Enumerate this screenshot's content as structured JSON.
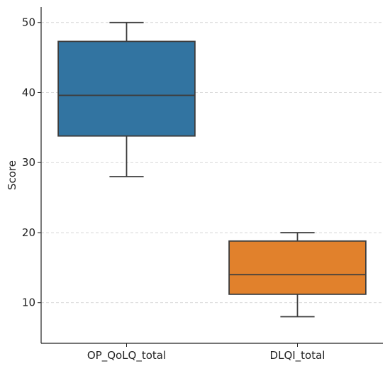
{
  "chart_data": {
    "type": "box",
    "title": "",
    "xlabel": "",
    "ylabel": "Score",
    "ylim": [
      4.2,
      52.2
    ],
    "yticks": [
      10,
      20,
      30,
      40,
      50
    ],
    "grid": "horizontal-dashed",
    "categories": [
      "OP_QoLQ_total",
      "DLQI_total"
    ],
    "boxes": [
      {
        "category": "OP_QoLQ_total",
        "whisker_low": 28,
        "q1": 33.8,
        "median": 39.6,
        "q3": 47.3,
        "whisker_high": 50,
        "color": "#3274a1"
      },
      {
        "category": "DLQI_total",
        "whisker_low": 8,
        "q1": 11.2,
        "median": 14,
        "q3": 18.8,
        "whisker_high": 20,
        "color": "#e1812c"
      }
    ]
  }
}
